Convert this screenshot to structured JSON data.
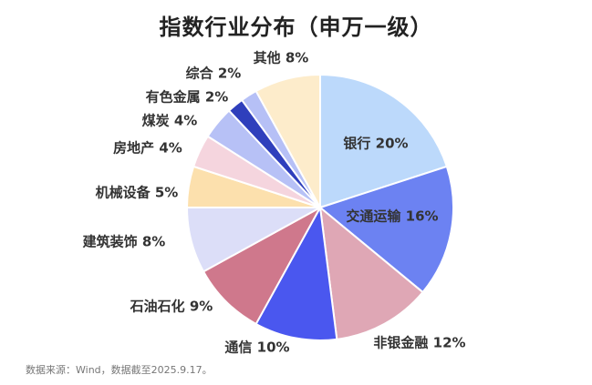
{
  "chart_data": {
    "type": "pie",
    "title": "指数行业分布（申万一级）",
    "slices": [
      {
        "label": "银行 20%",
        "value": 20,
        "color": "#bcd9fb"
      },
      {
        "label": "交通运输 16%",
        "value": 16,
        "color": "#6c82f2"
      },
      {
        "label": "非银金融 12%",
        "value": 12,
        "color": "#dfa7b5"
      },
      {
        "label": "通信 10%",
        "value": 10,
        "color": "#4a57ef"
      },
      {
        "label": "石油石化 9%",
        "value": 9,
        "color": "#cf788c"
      },
      {
        "label": "建筑装饰 8%",
        "value": 8,
        "color": "#dcdef8"
      },
      {
        "label": "机械设备 5%",
        "value": 5,
        "color": "#fce0ad"
      },
      {
        "label": "房地产 4%",
        "value": 4,
        "color": "#f5d5de"
      },
      {
        "label": "煤炭 4%",
        "value": 4,
        "color": "#b7c1f6"
      },
      {
        "label": "有色金属 2%",
        "value": 2,
        "color": "#2f3fbc"
      },
      {
        "label": "综合 2%",
        "value": 2,
        "color": "#b6c0f6"
      },
      {
        "label": "其他 8%",
        "value": 8,
        "color": "#fdeccb"
      }
    ]
  },
  "source_note": "数据来源：Wind，数据截至2025.9.17。"
}
